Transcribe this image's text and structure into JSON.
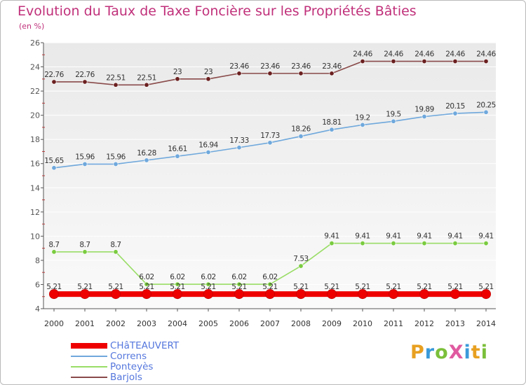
{
  "title": "Evolution du Taux de Taxe Foncière sur les Propriétés Bâties",
  "unit_label": "(en %)",
  "logo": {
    "text": "ProXiti",
    "letter_colors": [
      "#e8a020",
      "#3a9ad9",
      "#7bbf3a",
      "#e05aa0",
      "#3a9ad9",
      "#e8a020",
      "#7bbf3a"
    ]
  },
  "chart_data": {
    "type": "line",
    "title": "Evolution du Taux de Taxe Foncière sur les Propriétés Bâties",
    "ylabel": "(en %)",
    "xlabel": "",
    "x": [
      "2000",
      "2001",
      "2002",
      "2003",
      "2004",
      "2005",
      "2006",
      "2007",
      "2008",
      "2009",
      "2010",
      "2011",
      "2012",
      "2013",
      "2014"
    ],
    "ylim": [
      4,
      26
    ],
    "yticks": [
      "4",
      "6",
      "8",
      "10",
      "12",
      "14",
      "16",
      "18",
      "20",
      "22",
      "24",
      "26"
    ],
    "grid": "horizontal",
    "legend_position": "bottom-left",
    "series": [
      {
        "name": "CHâTEAUVERT",
        "color": "#ee0000",
        "line_color": "#ee0000",
        "point_color": "#ee0000",
        "thick": true,
        "values": [
          5.21,
          5.21,
          5.21,
          5.21,
          5.21,
          5.21,
          5.21,
          5.21,
          5.21,
          5.21,
          5.21,
          5.21,
          5.21,
          5.21,
          5.21
        ],
        "labels": [
          "5.21",
          "5.21",
          "5.21",
          "5.21",
          "5.21",
          "5.21",
          "5.21",
          "5.21",
          "5.21",
          "5.21",
          "5.21",
          "5.21",
          "5.21",
          "5.21",
          "5.21"
        ]
      },
      {
        "name": "Correns",
        "color": "#6fa8dc",
        "line_color": "#6fa8dc",
        "point_color": "#6fa8dc",
        "thick": false,
        "values": [
          15.65,
          15.96,
          15.96,
          16.28,
          16.61,
          16.94,
          17.33,
          17.73,
          18.26,
          18.81,
          19.2,
          19.5,
          19.89,
          20.15,
          20.25
        ],
        "labels": [
          "15.65",
          "15.96",
          "15.96",
          "16.28",
          "16.61",
          "16.94",
          "17.33",
          "17.73",
          "18.26",
          "18.81",
          "19.2",
          "19.5",
          "19.89",
          "20.15",
          "20.25"
        ]
      },
      {
        "name": "Ponteyès",
        "color": "#99dd66",
        "line_color": "#99dd66",
        "point_color": "#7acb3f",
        "thick": false,
        "values": [
          8.7,
          8.7,
          8.7,
          6.02,
          6.02,
          6.02,
          6.02,
          6.02,
          7.53,
          9.41,
          9.41,
          9.41,
          9.41,
          9.41,
          9.41
        ],
        "labels": [
          "8.7",
          "8.7",
          "8.7",
          "6.02",
          "6.02",
          "6.02",
          "6.02",
          "6.02",
          "7.53",
          "9.41",
          "9.41",
          "9.41",
          "9.41",
          "9.41",
          "9.41"
        ]
      },
      {
        "name": "Barjols",
        "color": "#8a4a4a",
        "line_color": "#8a4a4a",
        "point_color": "#6b2020",
        "thick": false,
        "values": [
          22.76,
          22.76,
          22.51,
          22.51,
          23,
          23,
          23.46,
          23.46,
          23.46,
          23.46,
          24.46,
          24.46,
          24.46,
          24.46,
          24.46
        ],
        "labels": [
          "22.76",
          "22.76",
          "22.51",
          "22.51",
          "23",
          "23",
          "23.46",
          "23.46",
          "23.46",
          "23.46",
          "24.46",
          "24.46",
          "24.46",
          "24.46",
          "24.46"
        ]
      }
    ]
  }
}
